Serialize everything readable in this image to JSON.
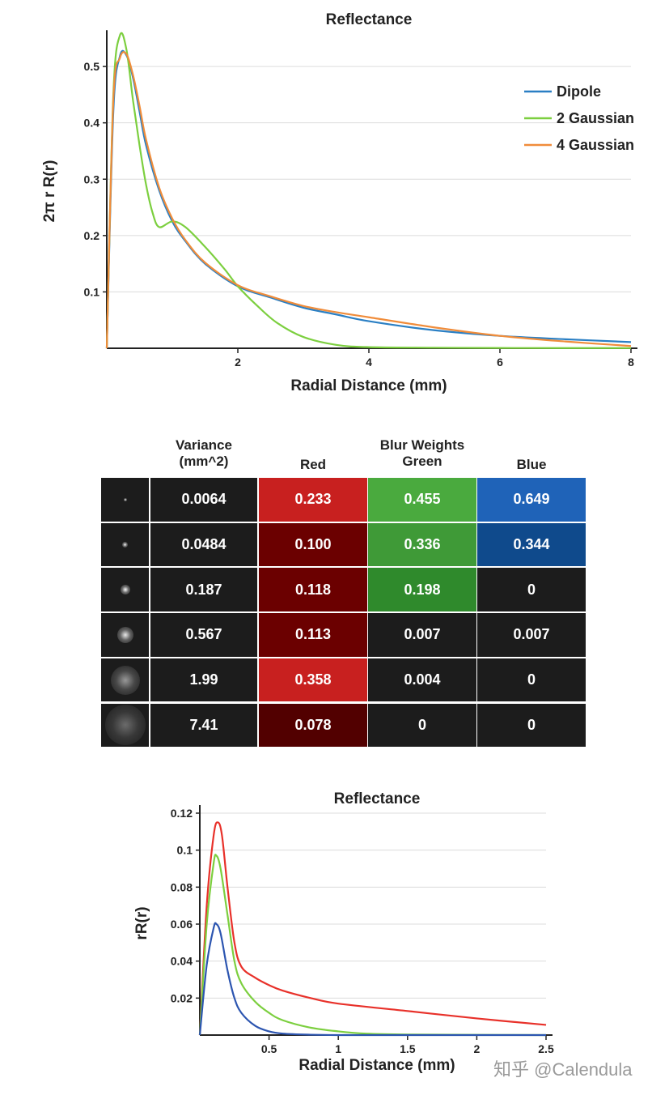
{
  "chart_data": [
    {
      "type": "line",
      "title": "Reflectance",
      "xlabel": "Radial Distance (mm)",
      "ylabel": "2π r R(r)",
      "xlim": [
        0,
        8
      ],
      "ylim": [
        0,
        0.55
      ],
      "xticks": [
        "2",
        "4",
        "6",
        "8"
      ],
      "yticks": [
        "0.1",
        "0.2",
        "0.3",
        "0.4",
        "0.5"
      ],
      "grid": "horizontal",
      "legend_position": "top-right",
      "series": [
        {
          "name": "Dipole",
          "color": "#2a7fc4",
          "x": [
            0,
            0.1,
            0.2,
            0.3,
            0.4,
            0.5,
            0.6,
            0.8,
            1.0,
            1.2,
            1.5,
            2.0,
            2.5,
            3.0,
            3.5,
            4.0,
            5.0,
            6.0,
            7.0,
            8.0
          ],
          "y": [
            0,
            0.42,
            0.518,
            0.52,
            0.48,
            0.42,
            0.36,
            0.28,
            0.225,
            0.19,
            0.15,
            0.11,
            0.09,
            0.072,
            0.06,
            0.048,
            0.032,
            0.022,
            0.016,
            0.011
          ]
        },
        {
          "name": "2 Gaussian",
          "color": "#7ccf3f",
          "x": [
            0,
            0.1,
            0.2,
            0.3,
            0.4,
            0.5,
            0.6,
            0.7,
            0.8,
            1.0,
            1.2,
            1.5,
            1.8,
            2.0,
            2.3,
            2.6,
            3.0,
            3.5,
            4.0,
            5.0,
            6.0,
            8.0
          ],
          "y": [
            0,
            0.45,
            0.555,
            0.53,
            0.44,
            0.36,
            0.29,
            0.24,
            0.215,
            0.225,
            0.215,
            0.18,
            0.14,
            0.11,
            0.075,
            0.045,
            0.02,
            0.006,
            0.002,
            0.001,
            0.0005,
            0.0003
          ]
        },
        {
          "name": "4 Gaussian",
          "color": "#f08c3a",
          "x": [
            0,
            0.1,
            0.2,
            0.3,
            0.4,
            0.5,
            0.6,
            0.8,
            1.0,
            1.2,
            1.5,
            2.0,
            2.5,
            3.0,
            3.5,
            4.0,
            5.0,
            6.0,
            7.0,
            8.0
          ],
          "y": [
            0,
            0.44,
            0.515,
            0.522,
            0.485,
            0.43,
            0.37,
            0.285,
            0.23,
            0.192,
            0.152,
            0.112,
            0.092,
            0.075,
            0.064,
            0.055,
            0.037,
            0.022,
            0.012,
            0.004
          ]
        }
      ]
    },
    {
      "type": "table",
      "title": "Blur Weights",
      "columns": [
        "Variance (mm^2)",
        "Red",
        "Green",
        "Blue"
      ],
      "rows": [
        {
          "variance": "0.0064",
          "red": "0.233",
          "green": "0.455",
          "blue": "0.649"
        },
        {
          "variance": "0.0484",
          "red": "0.100",
          "green": "0.336",
          "blue": "0.344"
        },
        {
          "variance": "0.187",
          "red": "0.118",
          "green": "0.198",
          "blue": "0"
        },
        {
          "variance": "0.567",
          "red": "0.113",
          "green": "0.007",
          "blue": "0.007"
        },
        {
          "variance": "1.99",
          "red": "0.358",
          "green": "0.004",
          "blue": "0"
        },
        {
          "variance": "7.41",
          "red": "0.078",
          "green": "0",
          "blue": "0"
        }
      ]
    },
    {
      "type": "line",
      "title": "Reflectance",
      "xlabel": "Radial Distance (mm)",
      "ylabel": "rR(r)",
      "xlim": [
        0,
        2.5
      ],
      "ylim": [
        0,
        0.12
      ],
      "xticks": [
        "0.5",
        "1",
        "1.5",
        "2",
        "2.5"
      ],
      "yticks": [
        "0.02",
        "0.04",
        "0.06",
        "0.08",
        "0.1",
        "0.12"
      ],
      "grid": "horizontal",
      "series": [
        {
          "color": "#e8312a",
          "x": [
            0,
            0.05,
            0.1,
            0.13,
            0.16,
            0.2,
            0.25,
            0.3,
            0.4,
            0.5,
            0.6,
            0.8,
            1.0,
            1.5,
            2.0,
            2.5
          ],
          "y": [
            0,
            0.07,
            0.108,
            0.115,
            0.108,
            0.08,
            0.05,
            0.037,
            0.031,
            0.027,
            0.024,
            0.02,
            0.017,
            0.013,
            0.009,
            0.0055
          ]
        },
        {
          "color": "#7ccf3f",
          "x": [
            0,
            0.05,
            0.1,
            0.12,
            0.15,
            0.2,
            0.25,
            0.3,
            0.4,
            0.5,
            0.6,
            0.8,
            1.0,
            1.2,
            1.5,
            2.0,
            2.5
          ],
          "y": [
            0,
            0.06,
            0.093,
            0.097,
            0.09,
            0.065,
            0.04,
            0.028,
            0.018,
            0.012,
            0.008,
            0.004,
            0.002,
            0.0008,
            0.0003,
            0.0001,
            0
          ]
        },
        {
          "color": "#2c55b0",
          "x": [
            0,
            0.05,
            0.1,
            0.12,
            0.15,
            0.2,
            0.25,
            0.3,
            0.4,
            0.5,
            0.6,
            0.8,
            1.0,
            1.5,
            2.0,
            2.5
          ],
          "y": [
            0,
            0.038,
            0.058,
            0.06,
            0.055,
            0.035,
            0.02,
            0.012,
            0.005,
            0.002,
            0.0008,
            0.0002,
            0,
            0,
            0,
            0
          ]
        }
      ]
    }
  ],
  "table_header": {
    "variance_line1": "Variance",
    "variance_line2": "(mm^2)",
    "red": "Red",
    "blur_weights": "Blur Weights",
    "green": "Green",
    "blue": "Blue"
  },
  "cell_colors": {
    "red": [
      "#c8201f",
      "#6b0000",
      "#6b0000",
      "#6b0000",
      "#c8201f",
      "#520000"
    ],
    "green": [
      "#4aaa3e",
      "#3f9a37",
      "#2f8a2c",
      "#1c1c1c",
      "#1c1c1c",
      "#1c1c1c"
    ],
    "blue": [
      "#1f63b8",
      "#0f4a8c",
      "#1c1c1c",
      "#1c1c1c",
      "#1c1c1c",
      "#1c1c1c"
    ],
    "dark": "#1c1c1c"
  },
  "watermark": "知乎 @Calendula"
}
